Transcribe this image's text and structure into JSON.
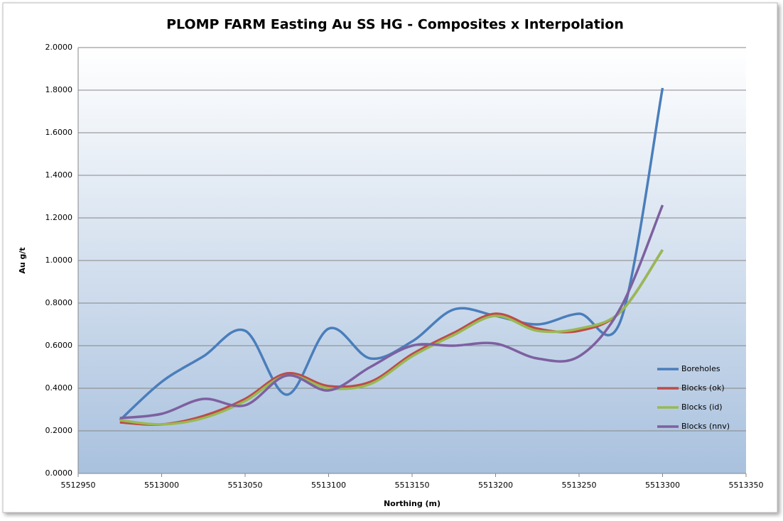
{
  "chart_data": {
    "type": "line",
    "title": "PLOMP FARM Easting Au SS HG - Composites x Interpolation",
    "x_label": "Northing (m)",
    "y_label": "Au g/t",
    "x": [
      5512975,
      5513000,
      5513025,
      5513050,
      5513075,
      5513100,
      5513125,
      5513150,
      5513175,
      5513200,
      5513225,
      5513250,
      5513275,
      5513300
    ],
    "series": [
      {
        "name": "Boreholes",
        "color": "#4a7ebb",
        "values": [
          0.25,
          0.43,
          0.55,
          0.67,
          0.37,
          0.68,
          0.54,
          0.62,
          0.77,
          0.74,
          0.7,
          0.75,
          0.72,
          1.81
        ]
      },
      {
        "name": "Blocks (ok)",
        "color": "#be4b48",
        "values": [
          0.24,
          0.23,
          0.27,
          0.35,
          0.47,
          0.41,
          0.43,
          0.56,
          0.66,
          0.75,
          0.68,
          0.67,
          0.76,
          1.05
        ]
      },
      {
        "name": "Blocks (id)",
        "color": "#98b954",
        "values": [
          0.25,
          0.23,
          0.26,
          0.34,
          0.46,
          0.4,
          0.42,
          0.55,
          0.65,
          0.74,
          0.67,
          0.68,
          0.76,
          1.05
        ]
      },
      {
        "name": "Blocks (nnv)",
        "color": "#7d60a0",
        "values": [
          0.26,
          0.28,
          0.35,
          0.32,
          0.46,
          0.39,
          0.5,
          0.6,
          0.6,
          0.61,
          0.54,
          0.55,
          0.78,
          1.26
        ]
      }
    ],
    "xlim": [
      5512950,
      5513350
    ],
    "xticks": [
      5512950,
      5513000,
      5513050,
      5513100,
      5513150,
      5513200,
      5513250,
      5513300,
      5513350
    ],
    "ylim": [
      0,
      2
    ],
    "yticks": [
      {
        "value": 0,
        "label": "0.0000"
      },
      {
        "value": 0.2,
        "label": "0.2000"
      },
      {
        "value": 0.4,
        "label": "0.4000"
      },
      {
        "value": 0.6,
        "label": "0.6000"
      },
      {
        "value": 0.8,
        "label": "0.8000"
      },
      {
        "value": 1.0,
        "label": "1.0000"
      },
      {
        "value": 1.2,
        "label": "1.2000"
      },
      {
        "value": 1.4,
        "label": "1.4000"
      },
      {
        "value": 1.6,
        "label": "1.6000"
      },
      {
        "value": 1.8,
        "label": "1.8000"
      },
      {
        "value": 2.0,
        "label": "2.0000"
      }
    ],
    "grid": true,
    "smooth": true,
    "legend": "right"
  }
}
